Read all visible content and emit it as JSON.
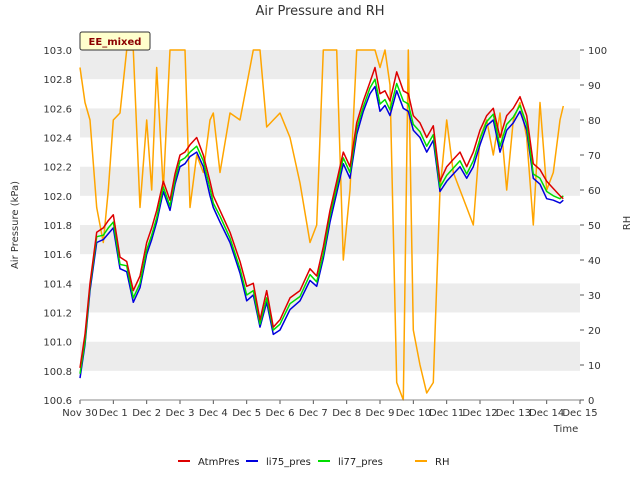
{
  "chart_data": {
    "type": "line",
    "title": "Air Pressure and RH",
    "xlabel": "Time",
    "ylabel_left": "Air Pressure (kPa)",
    "ylabel_right": "RH",
    "station_tag": "EE_mixed",
    "xlim": [
      0,
      15
    ],
    "x_tick_values": [
      0,
      1,
      2,
      3,
      4,
      5,
      6,
      7,
      8,
      9,
      10,
      11,
      12,
      13,
      14,
      15
    ],
    "x_tick_labels": [
      "Nov 30",
      "Dec 1",
      "Dec 2",
      "Dec 3",
      "Dec 4",
      "Dec 5",
      "Dec 6",
      "Dec 7",
      "Dec 8",
      "Dec 9",
      "Dec 10",
      "Dec 11",
      "Dec 12",
      "Dec 13",
      "Dec 14",
      "Dec 15"
    ],
    "ylim_left": [
      100.6,
      103.0
    ],
    "y_ticks_left": [
      "100.6",
      "100.8",
      "101.0",
      "101.2",
      "101.4",
      "101.6",
      "101.8",
      "102.0",
      "102.2",
      "102.4",
      "102.6",
      "102.8",
      "103.0"
    ],
    "ylim_right": [
      0,
      100
    ],
    "y_ticks_right": [
      "0",
      "10",
      "20",
      "30",
      "40",
      "50",
      "60",
      "70",
      "80",
      "90",
      "100"
    ],
    "grid": "horizontal bands",
    "legend_position": "bottom-center",
    "colors": {
      "AtmPres": "#dd0000",
      "li75_pres": "#0000dd",
      "li77_pres": "#00dd00",
      "RH": "#ffa500",
      "band": "#ececec",
      "tag_bg": "#ffffcc"
    },
    "x": [
      0.0,
      0.15,
      0.3,
      0.5,
      0.7,
      0.85,
      1.0,
      1.2,
      1.4,
      1.6,
      1.8,
      2.0,
      2.15,
      2.3,
      2.5,
      2.7,
      2.85,
      3.0,
      3.15,
      3.3,
      3.5,
      3.7,
      3.9,
      4.0,
      4.2,
      4.5,
      4.8,
      5.0,
      5.2,
      5.4,
      5.6,
      5.8,
      6.0,
      6.3,
      6.6,
      6.9,
      7.1,
      7.3,
      7.5,
      7.7,
      7.9,
      8.1,
      8.3,
      8.5,
      8.7,
      8.85,
      9.0,
      9.15,
      9.3,
      9.5,
      9.7,
      9.85,
      10.0,
      10.2,
      10.4,
      10.6,
      10.8,
      11.0,
      11.2,
      11.4,
      11.6,
      11.8,
      12.0,
      12.2,
      12.4,
      12.6,
      12.8,
      13.0,
      13.2,
      13.4,
      13.6,
      13.8,
      14.0,
      14.2,
      14.4,
      14.5
    ],
    "series": [
      {
        "name": "AtmPres",
        "axis": "left",
        "values": [
          100.82,
          101.05,
          101.4,
          101.75,
          101.78,
          101.83,
          101.87,
          101.58,
          101.55,
          101.35,
          101.45,
          101.68,
          101.78,
          101.9,
          102.1,
          101.97,
          102.15,
          102.28,
          102.3,
          102.35,
          102.4,
          102.28,
          102.1,
          102.0,
          101.9,
          101.75,
          101.55,
          101.38,
          101.4,
          101.15,
          101.35,
          101.1,
          101.15,
          101.3,
          101.35,
          101.5,
          101.45,
          101.65,
          101.9,
          102.1,
          102.3,
          102.2,
          102.5,
          102.65,
          102.78,
          102.88,
          102.7,
          102.72,
          102.65,
          102.85,
          102.72,
          102.7,
          102.55,
          102.5,
          102.4,
          102.48,
          102.1,
          102.2,
          102.25,
          102.3,
          102.2,
          102.3,
          102.45,
          102.55,
          102.6,
          102.4,
          102.55,
          102.6,
          102.68,
          102.55,
          102.22,
          102.18,
          102.1,
          102.05,
          102.0,
          101.98
        ]
      },
      {
        "name": "li75_pres",
        "axis": "left",
        "values": [
          100.75,
          100.98,
          101.35,
          101.68,
          101.7,
          101.74,
          101.78,
          101.5,
          101.48,
          101.27,
          101.37,
          101.6,
          101.7,
          101.82,
          102.03,
          101.9,
          102.08,
          102.2,
          102.22,
          102.27,
          102.3,
          102.2,
          102.0,
          101.92,
          101.82,
          101.68,
          101.47,
          101.28,
          101.32,
          101.1,
          101.27,
          101.05,
          101.08,
          101.22,
          101.28,
          101.42,
          101.38,
          101.57,
          101.82,
          102.02,
          102.22,
          102.12,
          102.42,
          102.58,
          102.7,
          102.75,
          102.58,
          102.62,
          102.55,
          102.72,
          102.6,
          102.58,
          102.45,
          102.4,
          102.3,
          102.38,
          102.03,
          102.1,
          102.15,
          102.2,
          102.12,
          102.2,
          102.35,
          102.48,
          102.52,
          102.3,
          102.45,
          102.5,
          102.58,
          102.45,
          102.12,
          102.08,
          101.98,
          101.97,
          101.95,
          101.97
        ]
      },
      {
        "name": "li77_pres",
        "axis": "left",
        "values": [
          100.78,
          101.0,
          101.38,
          101.72,
          101.73,
          101.78,
          101.82,
          101.53,
          101.52,
          101.3,
          101.4,
          101.63,
          101.73,
          101.85,
          102.06,
          101.93,
          102.11,
          102.24,
          102.26,
          102.3,
          102.34,
          102.24,
          102.05,
          101.95,
          101.86,
          101.71,
          101.5,
          101.32,
          101.35,
          101.12,
          101.3,
          101.08,
          101.12,
          101.26,
          101.31,
          101.46,
          101.41,
          101.6,
          101.86,
          102.06,
          102.26,
          102.16,
          102.46,
          102.61,
          102.74,
          102.8,
          102.63,
          102.66,
          102.59,
          102.77,
          102.65,
          102.63,
          102.49,
          102.44,
          102.34,
          102.42,
          102.06,
          102.14,
          102.19,
          102.24,
          102.15,
          102.24,
          102.39,
          102.51,
          102.56,
          102.34,
          102.49,
          102.54,
          102.62,
          102.49,
          102.15,
          102.12,
          102.03,
          102.0,
          101.98,
          102.0
        ]
      },
      {
        "name": "RH",
        "axis": "right",
        "values": [
          95,
          85,
          80,
          55,
          45,
          60,
          80,
          82,
          100,
          100,
          55,
          80,
          60,
          95,
          60,
          100,
          100,
          100,
          100,
          55,
          70,
          65,
          80,
          82,
          65,
          82,
          80,
          90,
          100,
          100,
          78,
          80,
          82,
          75,
          62,
          45,
          50,
          100,
          100,
          100,
          40,
          60,
          100,
          100,
          100,
          100,
          95,
          100,
          90,
          5,
          0,
          100,
          20,
          10,
          2,
          5,
          60,
          80,
          65,
          60,
          55,
          50,
          75,
          80,
          70,
          82,
          60,
          80,
          85,
          75,
          50,
          85,
          60,
          65,
          80,
          84
        ]
      }
    ]
  }
}
